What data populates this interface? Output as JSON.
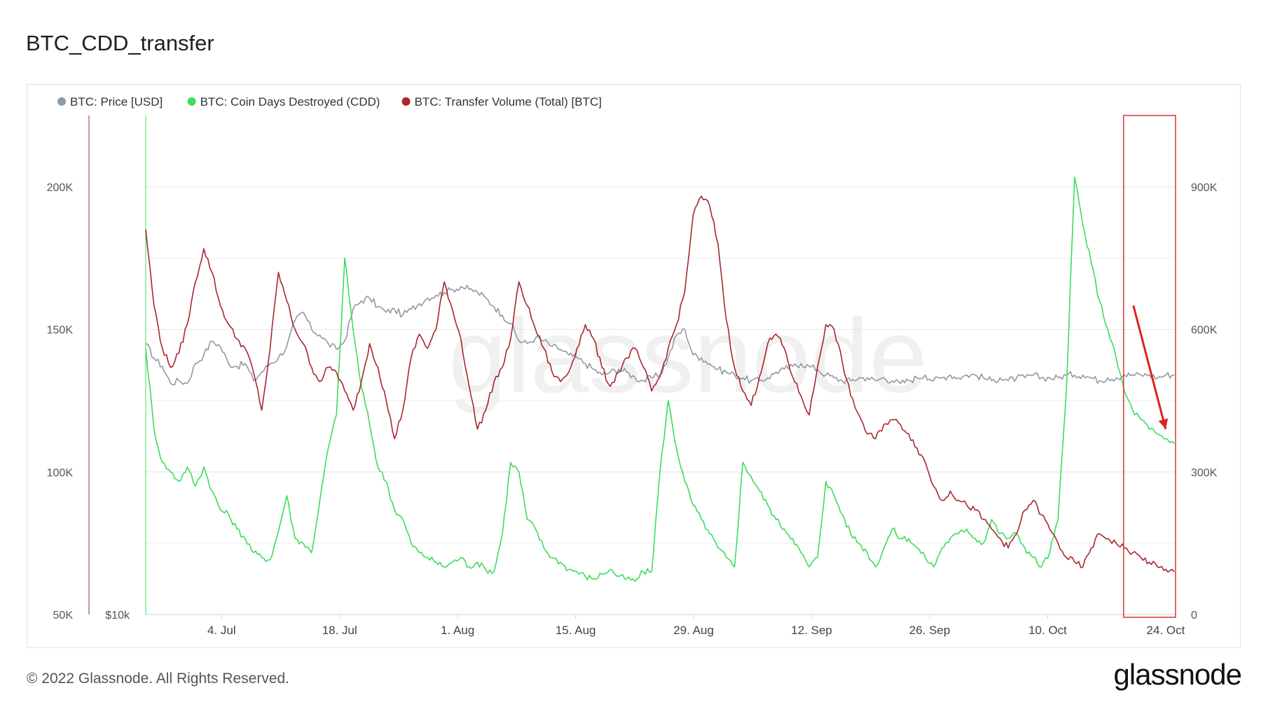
{
  "page": {
    "title": "BTC_CDD_transfer",
    "footer": "© 2022 Glassnode. All Rights Reserved.",
    "logo": "glassnode",
    "watermark": "glassnode"
  },
  "chart_data": {
    "type": "line",
    "title": "BTC_CDD_transfer",
    "x_labels": [
      "4. Jul",
      "18. Jul",
      "1. Aug",
      "15. Aug",
      "29. Aug",
      "12. Sep",
      "26. Sep",
      "10. Oct",
      "24. Oct"
    ],
    "x_range": [
      "2022-06-25",
      "2022-10-25"
    ],
    "left_axis": {
      "ticks": [
        "50K",
        "100K",
        "150K",
        "200K"
      ],
      "tick_values": [
        50000,
        100000,
        150000,
        200000
      ],
      "range": [
        50000,
        225000
      ],
      "unit_label": "$10k"
    },
    "right_axis": {
      "ticks": [
        "0",
        "300K",
        "600K",
        "900K"
      ],
      "tick_values": [
        0,
        300000,
        600000,
        900000
      ],
      "range": [
        0,
        1050000
      ]
    },
    "legend": [
      {
        "label": "BTC: Price [USD]",
        "color": "#8e9aa4"
      },
      {
        "label": "BTC: Coin Days Destroyed (CDD)",
        "color": "#3cdc5c"
      },
      {
        "label": "BTC: Transfer Volume (Total) [BTC]",
        "color": "#a8262d"
      }
    ],
    "series": [
      {
        "name": "BTC: Price [USD]",
        "axis": "left",
        "color": "#8e9aa4",
        "values": [
          145000,
          140000,
          137000,
          131000,
          132000,
          131000,
          138000,
          141000,
          146000,
          144000,
          138000,
          137000,
          138000,
          132000,
          135000,
          138000,
          140000,
          144000,
          153000,
          156000,
          150000,
          148000,
          145000,
          143000,
          146000,
          157000,
          160000,
          161000,
          158000,
          156000,
          157000,
          155000,
          157000,
          159000,
          161000,
          162000,
          163000,
          164000,
          165000,
          164000,
          163000,
          161000,
          158000,
          155000,
          152000,
          146000,
          145000,
          147000,
          146000,
          144000,
          143000,
          141000,
          140000,
          138000,
          136000,
          134000,
          135000,
          136000,
          135000,
          133000,
          132000,
          133000,
          134000,
          140000,
          148000,
          150000,
          141000,
          140000,
          138000,
          136000,
          135000,
          134000,
          133000,
          132000,
          132000,
          133000,
          135000,
          136000,
          137000,
          138000,
          137000,
          136000,
          134000,
          133000,
          132000,
          132000,
          133000,
          133000,
          132000,
          133000,
          132000,
          131000,
          132000,
          133000,
          134000,
          132000,
          133000,
          134000,
          133000,
          134000,
          134000,
          133000,
          132000,
          133000,
          132000,
          133000,
          133000,
          134000,
          133000,
          133000,
          133000,
          134000,
          134000,
          134000,
          133000,
          132000,
          133000,
          133000,
          134000,
          134000,
          134000,
          134000,
          133000,
          134000,
          134000
        ]
      },
      {
        "name": "BTC: Coin Days Destroyed (CDD)",
        "axis": "right",
        "color": "#3cdc5c",
        "values": [
          560000,
          390000,
          320000,
          300000,
          280000,
          310000,
          270000,
          310000,
          260000,
          220000,
          210000,
          180000,
          160000,
          130000,
          120000,
          115000,
          175000,
          250000,
          160000,
          150000,
          130000,
          240000,
          350000,
          420000,
          750000,
          600000,
          480000,
          400000,
          310000,
          280000,
          220000,
          200000,
          150000,
          130000,
          120000,
          110000,
          100000,
          110000,
          120000,
          100000,
          110000,
          95000,
          90000,
          170000,
          320000,
          300000,
          200000,
          180000,
          140000,
          120000,
          110000,
          95000,
          90000,
          80000,
          75000,
          85000,
          95000,
          80000,
          75000,
          70000,
          90000,
          90000,
          300000,
          450000,
          350000,
          280000,
          230000,
          200000,
          170000,
          140000,
          120000,
          100000,
          320000,
          290000,
          260000,
          230000,
          200000,
          180000,
          160000,
          130000,
          100000,
          120000,
          280000,
          250000,
          210000,
          170000,
          150000,
          130000,
          100000,
          140000,
          180000,
          160000,
          160000,
          140000,
          120000,
          100000,
          140000,
          160000,
          170000,
          180000,
          160000,
          150000,
          200000,
          170000,
          160000,
          170000,
          140000,
          120000,
          100000,
          130000,
          200000,
          470000,
          920000,
          820000,
          740000,
          660000,
          600000,
          540000,
          470000,
          430000,
          410000,
          390000,
          380000,
          370000,
          360000
        ]
      },
      {
        "name": "BTC: Transfer Volume (Total) [BTC]",
        "axis": "right",
        "color": "#a8262d",
        "values": [
          810000,
          650000,
          560000,
          520000,
          550000,
          610000,
          700000,
          770000,
          720000,
          650000,
          610000,
          580000,
          560000,
          510000,
          430000,
          560000,
          720000,
          660000,
          600000,
          570000,
          520000,
          490000,
          520000,
          510000,
          470000,
          430000,
          490000,
          570000,
          520000,
          450000,
          370000,
          430000,
          540000,
          590000,
          560000,
          600000,
          700000,
          640000,
          580000,
          480000,
          390000,
          430000,
          490000,
          520000,
          580000,
          700000,
          650000,
          600000,
          560000,
          510000,
          490000,
          510000,
          560000,
          610000,
          580000,
          520000,
          480000,
          510000,
          540000,
          560000,
          520000,
          470000,
          500000,
          560000,
          610000,
          680000,
          840000,
          880000,
          860000,
          780000,
          620000,
          520000,
          470000,
          440000,
          500000,
          570000,
          590000,
          560000,
          500000,
          460000,
          420000,
          520000,
          610000,
          600000,
          530000,
          460000,
          420000,
          380000,
          370000,
          400000,
          410000,
          400000,
          380000,
          350000,
          320000,
          270000,
          240000,
          260000,
          240000,
          230000,
          220000,
          200000,
          180000,
          160000,
          140000,
          170000,
          220000,
          240000,
          210000,
          180000,
          150000,
          120000,
          110000,
          100000,
          140000,
          170000,
          160000,
          150000,
          140000,
          130000,
          120000,
          110000,
          100000,
          95000,
          90000
        ]
      }
    ],
    "highlight": {
      "x_range": [
        "2022-10-20",
        "2022-10-25"
      ],
      "color": "#e03030"
    },
    "annotation": {
      "type": "arrow",
      "color": "#e02020",
      "from": [
        "2022-10-21",
        650000
      ],
      "to": [
        "2022-10-24",
        390000
      ]
    }
  }
}
